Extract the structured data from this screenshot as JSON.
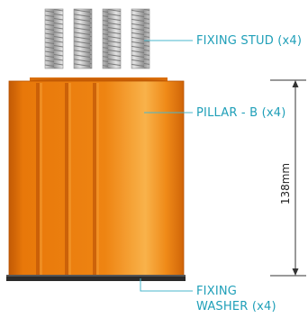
{
  "labels": {
    "stud": "FIXING  STUD (x4)",
    "pillar": "PILLAR - B (x4)",
    "washer_line1": "FIXING",
    "washer_line2": "WASHER  (x4)"
  },
  "dimension": {
    "height_label": "138mm"
  },
  "colors": {
    "callout_text": "#1f9fb8",
    "leader": "#4ab7cc",
    "pillar_main": "#e8780a",
    "pillar_dark": "#c25a05",
    "pillar_light": "#f7a23a",
    "stud": "#c9c9c9",
    "washer": "#222222",
    "dimension_line": "#333333"
  }
}
